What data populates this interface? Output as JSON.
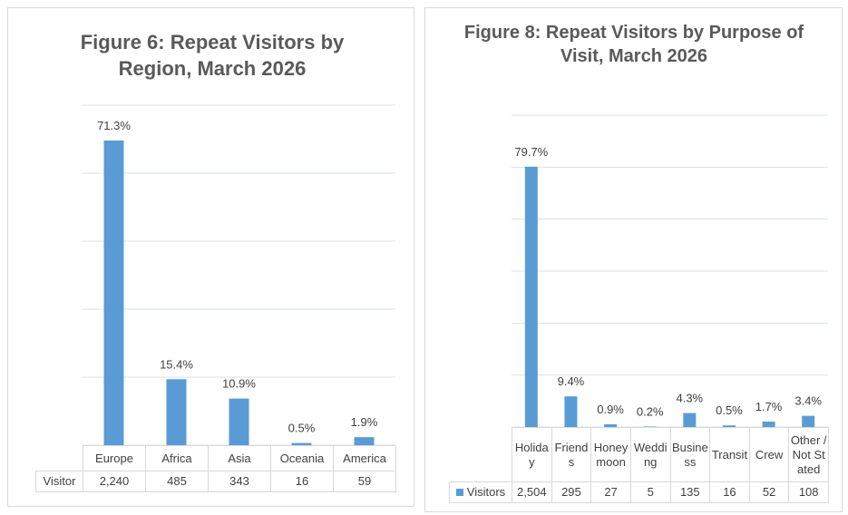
{
  "chart_data": [
    {
      "type": "bar",
      "title": "Figure 6: Repeat Visitors by Region, March 2026",
      "categories": [
        "Europe",
        "Africa",
        "Asia",
        "Oceania",
        "America"
      ],
      "series": [
        {
          "name": "Visitor",
          "color": "#5b9bd5",
          "values": [
            2240,
            485,
            343,
            16,
            59
          ],
          "value_labels": [
            "2,240",
            "485",
            "343",
            "16",
            "59"
          ],
          "data_labels": [
            "71.3%",
            "15.4%",
            "10.9%",
            "0.5%",
            "1.9%"
          ]
        }
      ],
      "ylim": [
        0,
        2500
      ],
      "yticks": [
        0,
        500,
        1000,
        1500,
        2000,
        2500
      ],
      "grid": true,
      "legend_key": false
    },
    {
      "type": "bar",
      "title": "Figure 8: Repeat Visitors by Purpose of Visit, March 2026",
      "categories": [
        "Holiday",
        "Friends",
        "Honeymoon",
        "Wedding",
        "Business",
        "Transit",
        "Crew",
        "Other / Not Stated"
      ],
      "series": [
        {
          "name": "Visitors",
          "color": "#5b9bd5",
          "values": [
            2504,
            295,
            27,
            5,
            135,
            16,
            52,
            108
          ],
          "value_labels": [
            "2,504",
            "295",
            "27",
            "5",
            "135",
            "16",
            "52",
            "108"
          ],
          "data_labels": [
            "79.7%",
            "9.4%",
            "0.9%",
            "0.2%",
            "4.3%",
            "0.5%",
            "1.7%",
            "3.4%"
          ]
        }
      ],
      "ylim": [
        0,
        3000
      ],
      "yticks": [
        0,
        500,
        1000,
        1500,
        2000,
        2500,
        3000
      ],
      "grid": true,
      "legend_key": true
    }
  ]
}
